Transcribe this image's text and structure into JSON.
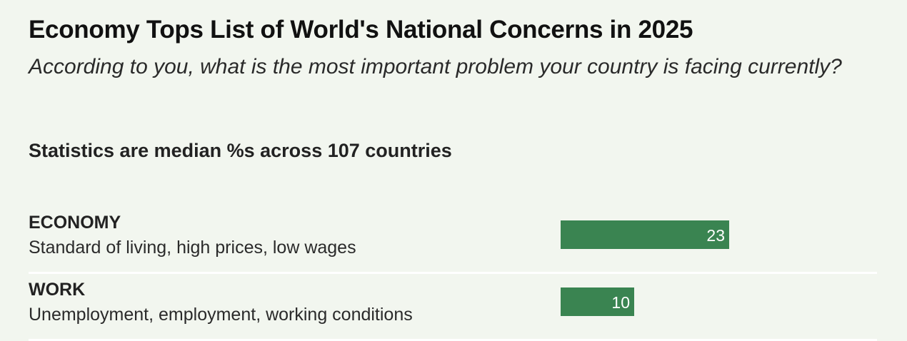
{
  "title": "Economy Tops List of World's National Concerns in 2025",
  "subtitle": "According to you, what is the most important problem your country is facing currently?",
  "note": "Statistics are median %s across 107 countries",
  "colors": {
    "background": "#f2f6ef",
    "bar": "#3a8451",
    "divider": "#ffffff"
  },
  "chart_data": {
    "type": "bar",
    "orientation": "horizontal",
    "title": "Economy Tops List of World's National Concerns in 2025",
    "subtitle": "According to you, what is the most important problem your country is facing currently?",
    "categories": [
      "ECONOMY",
      "WORK"
    ],
    "category_descriptions": [
      "Standard of living, high prices, low wages",
      "Unemployment, employment, working conditions"
    ],
    "values": [
      23,
      10
    ],
    "xlim": [
      0,
      100
    ],
    "grid": false,
    "data_labels": true
  }
}
